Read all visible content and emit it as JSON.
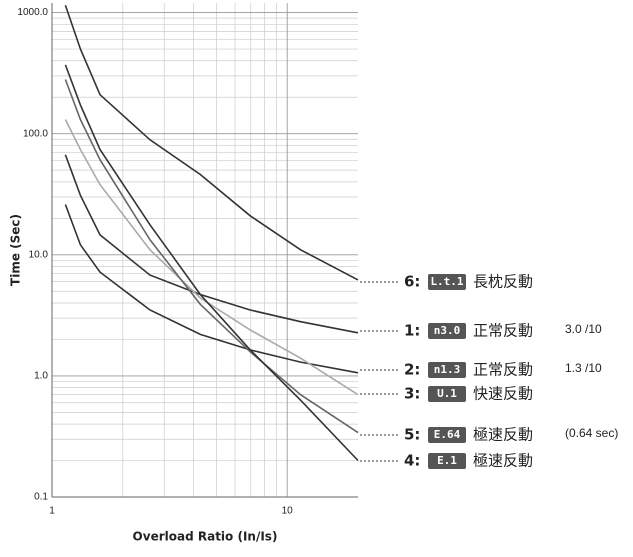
{
  "chart_data": {
    "type": "line",
    "log_x": true,
    "log_y": true,
    "grid": true,
    "y_label": "Time (Sec)",
    "x_label": "Overload Ratio  (In/Is)",
    "xlim": [
      1,
      20
    ],
    "xticks": [
      1,
      10
    ],
    "ylim": [
      0.1,
      1200
    ],
    "yticks": [
      0.1,
      {
        "value": 1,
        "label": "1.0"
      },
      {
        "value": 10,
        "label": "10.0"
      },
      {
        "value": 100,
        "label": "100.0"
      },
      {
        "value": 1000,
        "label": "1000.0"
      }
    ],
    "x": [
      1.14,
      1.32,
      1.6,
      2.61,
      4.27,
      6.96,
      11.4,
      20
    ],
    "series": [
      {
        "number": "6:",
        "badge": "L.t.1",
        "name": "長枕反動",
        "color": "#333333",
        "values": [
          1150,
          500,
          210,
          89,
          46,
          21,
          11,
          6.2
        ]
      },
      {
        "number": "1:",
        "badge": "n3.0",
        "name": "正常反動",
        "note": "3.0 /10",
        "color": "#333333",
        "values": [
          67,
          31,
          14.6,
          6.8,
          4.7,
          3.5,
          2.8,
          2.27
        ]
      },
      {
        "number": "2:",
        "badge": "n1.3",
        "name": "正常反動",
        "note": "1.3 /10",
        "color": "#333333",
        "values": [
          26,
          12.1,
          7.2,
          3.5,
          2.2,
          1.64,
          1.3,
          1.06
        ]
      },
      {
        "number": "3:",
        "badge": "U.1",
        "name": "快速反動",
        "color": "#aaaaaa",
        "values": [
          131,
          74,
          38,
          11,
          4.4,
          2.4,
          1.4,
          0.7
        ]
      },
      {
        "number": "5:",
        "badge": "E.64",
        "name": "極速反動",
        "note": "(0.64 sec)",
        "color": "#666666",
        "values": [
          280,
          131,
          61,
          13.3,
          3.9,
          1.58,
          0.7,
          0.34
        ]
      },
      {
        "number": "4:",
        "badge": "E.1",
        "name": "極速反動",
        "color": "#333333",
        "values": [
          370,
          173,
          74,
          17.7,
          4.7,
          1.64,
          0.63,
          0.2
        ]
      }
    ]
  }
}
